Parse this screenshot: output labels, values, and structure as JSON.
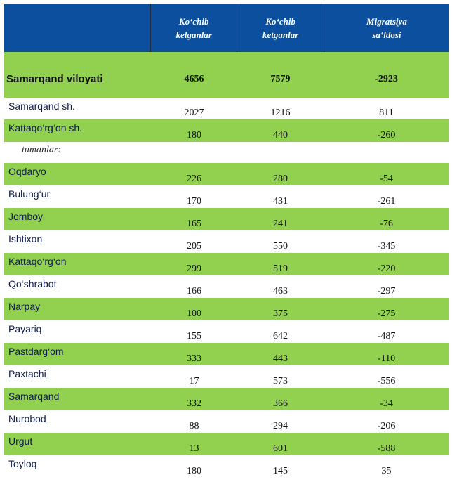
{
  "header": {
    "col0": "",
    "col1": "Ko‘chib\nkelganlar",
    "col2": "Ko‘chib\nketganlar",
    "col3": "Migratsiya\nsa‘ldosi"
  },
  "total": {
    "name": "Samarqand viloyati",
    "in": "4656",
    "out": "7579",
    "saldo": "-2923"
  },
  "cities": [
    {
      "name": "Samarqand sh.",
      "in": "2027",
      "out": "1216",
      "saldo": "811"
    },
    {
      "name": "Kattaqo‘rg‘on sh.",
      "in": "180",
      "out": "440",
      "saldo": "-260"
    }
  ],
  "section_label": "tumanlar:",
  "districts": [
    {
      "name": "Oqdaryo",
      "in": "226",
      "out": "280",
      "saldo": "-54"
    },
    {
      "name": "Bulung‘ur",
      "in": "170",
      "out": "431",
      "saldo": "-261"
    },
    {
      "name": "Jomboy",
      "in": "165",
      "out": "241",
      "saldo": "-76"
    },
    {
      "name": "Ishtixon",
      "in": "205",
      "out": "550",
      "saldo": "-345"
    },
    {
      "name": "Kattaqo‘rg‘on",
      "in": "299",
      "out": "519",
      "saldo": "-220"
    },
    {
      "name": "Qo‘shrabot",
      "in": "166",
      "out": "463",
      "saldo": "-297"
    },
    {
      "name": "Narpay",
      "in": "100",
      "out": "375",
      "saldo": "-275"
    },
    {
      "name": "Payariq",
      "in": "155",
      "out": "642",
      "saldo": "-487"
    },
    {
      "name": "Pastdarg‘om",
      "in": "333",
      "out": "443",
      "saldo": "-110"
    },
    {
      "name": "Paxtachi",
      "in": "17",
      "out": "573",
      "saldo": "-556"
    },
    {
      "name": "Samarqand",
      "in": "332",
      "out": "366",
      "saldo": "-34"
    },
    {
      "name": "Nurobod",
      "in": "88",
      "out": "294",
      "saldo": "-206"
    },
    {
      "name": "Urgut",
      "in": "13",
      "out": "601",
      "saldo": "-588"
    },
    {
      "name": "Toyloq",
      "in": "180",
      "out": "145",
      "saldo": "35"
    }
  ],
  "colors": {
    "header_bg": "#0b4f9e",
    "row_green": "#92d050",
    "row_white": "#ffffff"
  }
}
